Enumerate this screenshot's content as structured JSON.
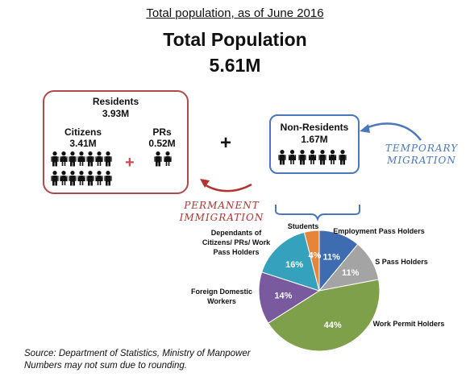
{
  "header": {
    "caption": "Total population, as of June 2016",
    "title": "Total Population",
    "total": "5.61M"
  },
  "residents": {
    "label": "Residents",
    "value": "3.93M",
    "citizens_label": "Citizens",
    "citizens_value": "3.41M",
    "prs_label": "PRs",
    "prs_value": "0.52M",
    "plus": "+"
  },
  "join_plus": "+",
  "nonresidents": {
    "label": "Non-Residents",
    "value": "1.67M"
  },
  "annotations": {
    "permanent": [
      "PERMANENT",
      "IMMIGRATION"
    ],
    "temporary": [
      "TEMPORARY",
      "MIGRATION"
    ]
  },
  "colors": {
    "residents_border": "#b0494c",
    "nonresidents_border": "#4a78b8",
    "permanent_text": "#b0342f",
    "temporary_text": "#4a78b8",
    "brace": "#4a78b8"
  },
  "chart_data": {
    "type": "pie",
    "categories": [
      "Employment Pass Holders",
      "S Pass Holders",
      "Work Permit Holders",
      "Foreign Domestic Workers",
      "Dependants of Citizens/ PRs/ Work Pass Holders",
      "Students"
    ],
    "labels_text": [
      [
        "Employment Pass Holders"
      ],
      [
        "S Pass Holders"
      ],
      [
        "Work Permit Holders"
      ],
      [
        "Foreign Domestic",
        "Workers"
      ],
      [
        "Dependants of",
        "Citizens/ PRs/ Work",
        "Pass Holders"
      ],
      [
        "Students"
      ]
    ],
    "values": [
      11,
      11,
      44,
      14,
      16,
      4
    ],
    "value_labels": [
      "11%",
      "11%",
      "44%",
      "14%",
      "16%",
      "4%"
    ],
    "colors": [
      "#3d6cb1",
      "#a4a4a4",
      "#7ea04b",
      "#7a5a9e",
      "#36a1bd",
      "#e5853a"
    ]
  },
  "source": [
    "Source: Department of Statistics, Ministry of Manpower",
    "Numbers may not sum due to rounding."
  ]
}
